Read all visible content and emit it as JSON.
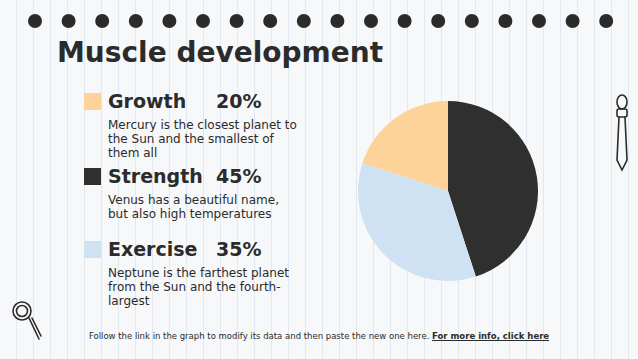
{
  "chart_data": {
    "type": "pie",
    "title": "Muscle development",
    "categories": [
      "Growth",
      "Strength",
      "Exercise"
    ],
    "values": [
      20,
      45,
      35
    ],
    "value_labels": [
      "20%",
      "45%",
      "35%"
    ],
    "colors": [
      "#fdd39a",
      "#2f2f2f",
      "#cfe2f3"
    ],
    "data_labels": false
  },
  "slide": {
    "descriptions": [
      "Mercury is the closest planet to the Sun and the smallest of them all",
      "Venus has a beautiful name, but also high temperatures",
      "Neptune is the farthest planet from the Sun and the fourth-largest"
    ],
    "footer": "Follow the link in the graph to modify its data and then paste the new one here.",
    "link": "For more info, click here"
  }
}
